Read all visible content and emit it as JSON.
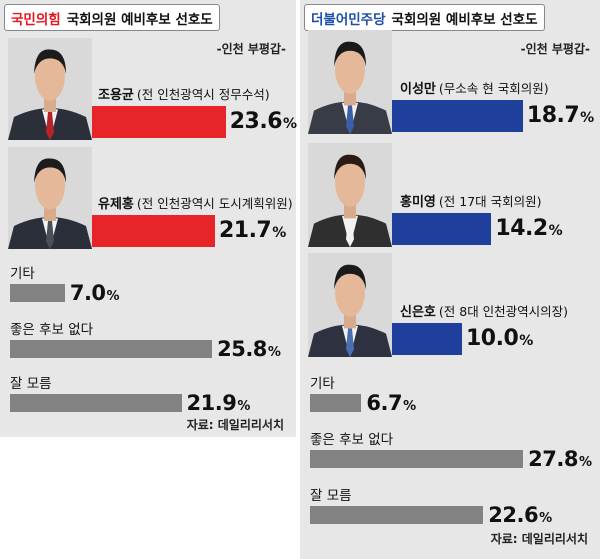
{
  "left": {
    "party": "국민의힘",
    "heading": "국회의원 예비후보 선호도",
    "region": "-인천 부평갑-",
    "source": "자료: 데일리리서치",
    "colors": {
      "party": "#e8131b",
      "bar": "#e8242b",
      "other": "#828282"
    }
  },
  "right": {
    "party": "더불어민주당",
    "heading": "국회의원 예비후보 선호도",
    "region": "-인천 부평갑-",
    "source": "자료: 데일리리서치",
    "colors": {
      "party": "#1d4fa8",
      "bar": "#1f3f9c",
      "other": "#828282"
    }
  },
  "chart_data": [
    {
      "type": "bar",
      "title": "국민의힘 국회의원 예비후보 선호도",
      "subtitle": "-인천 부평갑-",
      "unit": "%",
      "xlim": [
        0,
        30
      ],
      "candidates": [
        {
          "name": "조용균",
          "desc": "(전 인천광역시 정무수석)",
          "value": 23.6,
          "value_label": "23.6"
        },
        {
          "name": "유제홍",
          "desc": "(전 인천광역시 도시계획위원)",
          "value": 21.7,
          "value_label": "21.7"
        }
      ],
      "others": [
        {
          "label": "기타",
          "value": 7.0,
          "value_label": "7.0"
        },
        {
          "label": "좋은 후보 없다",
          "value": 25.8,
          "value_label": "25.8"
        },
        {
          "label": "잘 모름",
          "value": 21.9,
          "value_label": "21.9"
        }
      ]
    },
    {
      "type": "bar",
      "title": "더불어민주당 국회의원 예비후보 선호도",
      "subtitle": "-인천 부평갑-",
      "unit": "%",
      "xlim": [
        0,
        30
      ],
      "candidates": [
        {
          "name": "이성만",
          "desc": "(무소속 현 국회의원)",
          "value": 18.7,
          "value_label": "18.7"
        },
        {
          "name": "홍미영",
          "desc": "(전 17대 국회의원)",
          "value": 14.2,
          "value_label": "14.2"
        },
        {
          "name": "신은호",
          "desc": "(전 8대 인천광역시의장)",
          "value": 10.0,
          "value_label": "10.0"
        }
      ],
      "others": [
        {
          "label": "기타",
          "value": 6.7,
          "value_label": "6.7"
        },
        {
          "label": "좋은 후보 없다",
          "value": 27.8,
          "value_label": "27.8"
        },
        {
          "label": "잘 모름",
          "value": 22.6,
          "value_label": "22.6"
        }
      ]
    }
  ]
}
